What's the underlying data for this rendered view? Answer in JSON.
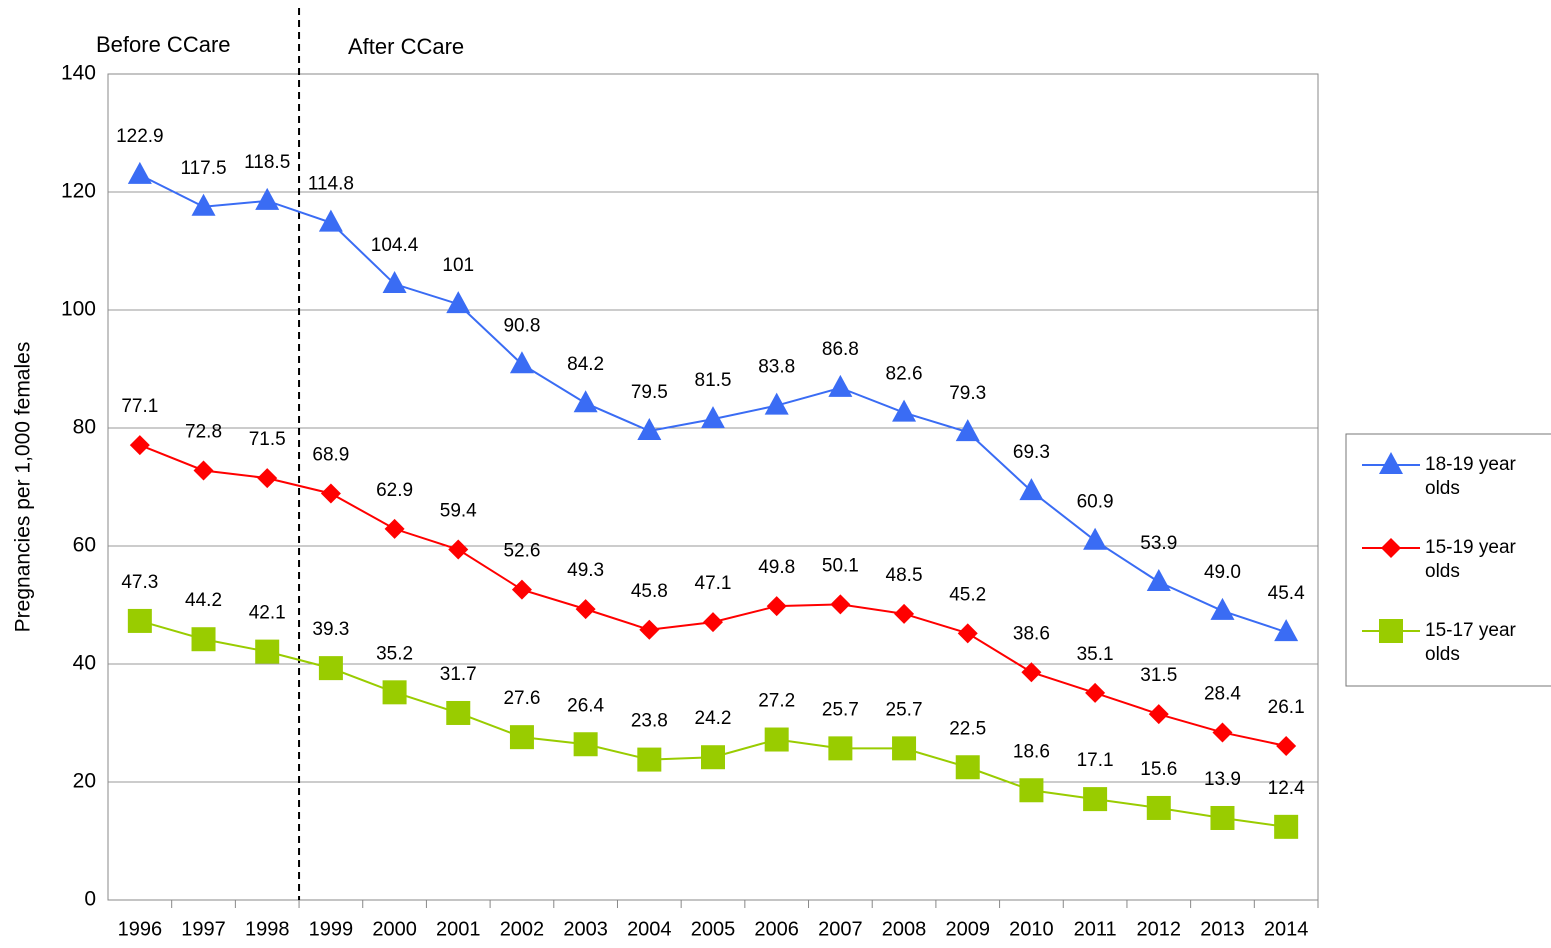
{
  "chart_data": {
    "type": "line",
    "ylabel": "Pregnancies per 1,000 females",
    "annotations": [
      "Before CCare",
      "After CCare"
    ],
    "categories": [
      "1996",
      "1997",
      "1998",
      "1999",
      "2000",
      "2001",
      "2002",
      "2003",
      "2004",
      "2005",
      "2006",
      "2007",
      "2008",
      "2009",
      "2010",
      "2011",
      "2012",
      "2013",
      "2014"
    ],
    "ylim": [
      0,
      140
    ],
    "yticks": [
      0,
      20,
      40,
      60,
      80,
      100,
      120,
      140
    ],
    "grid": true,
    "legend": "right",
    "series": [
      {
        "name": "18-19 year olds",
        "color": "#3a6cf4",
        "marker": "triangle",
        "values": [
          122.9,
          117.5,
          118.5,
          114.8,
          104.4,
          101,
          90.8,
          84.2,
          79.5,
          81.5,
          83.8,
          86.8,
          82.6,
          79.3,
          69.3,
          60.9,
          53.9,
          49.0,
          45.4
        ],
        "value_labels": [
          "122.9",
          "117.5",
          "118.5",
          "114.8",
          "104.4",
          "101",
          "90.8",
          "84.2",
          "79.5",
          "81.5",
          "83.8",
          "86.8",
          "82.6",
          "79.3",
          "69.3",
          "60.9",
          "53.9",
          "49.0",
          "45.4"
        ]
      },
      {
        "name": "15-19 year olds",
        "color": "#ff0000",
        "marker": "diamond",
        "values": [
          77.1,
          72.8,
          71.5,
          68.9,
          62.9,
          59.4,
          52.6,
          49.3,
          45.8,
          47.1,
          49.8,
          50.1,
          48.5,
          45.2,
          38.6,
          35.1,
          31.5,
          28.4,
          26.1
        ],
        "value_labels": [
          "77.1",
          "72.8",
          "71.5",
          "68.9",
          "62.9",
          "59.4",
          "52.6",
          "49.3",
          "45.8",
          "47.1",
          "49.8",
          "50.1",
          "48.5",
          "45.2",
          "38.6",
          "35.1",
          "31.5",
          "28.4",
          "26.1"
        ]
      },
      {
        "name": "15-17 year olds",
        "color": "#99cc00",
        "marker": "square",
        "values": [
          47.3,
          44.2,
          42.1,
          39.3,
          35.2,
          31.7,
          27.6,
          26.4,
          23.8,
          24.2,
          27.2,
          25.7,
          25.7,
          22.5,
          18.6,
          17.1,
          15.6,
          13.9,
          12.4
        ],
        "value_labels": [
          "47.3",
          "44.2",
          "42.1",
          "39.3",
          "35.2",
          "31.7",
          "27.6",
          "26.4",
          "23.8",
          "24.2",
          "27.2",
          "25.7",
          "25.7",
          "22.5",
          "18.6",
          "17.1",
          "15.6",
          "13.9",
          "12.4"
        ]
      }
    ]
  }
}
